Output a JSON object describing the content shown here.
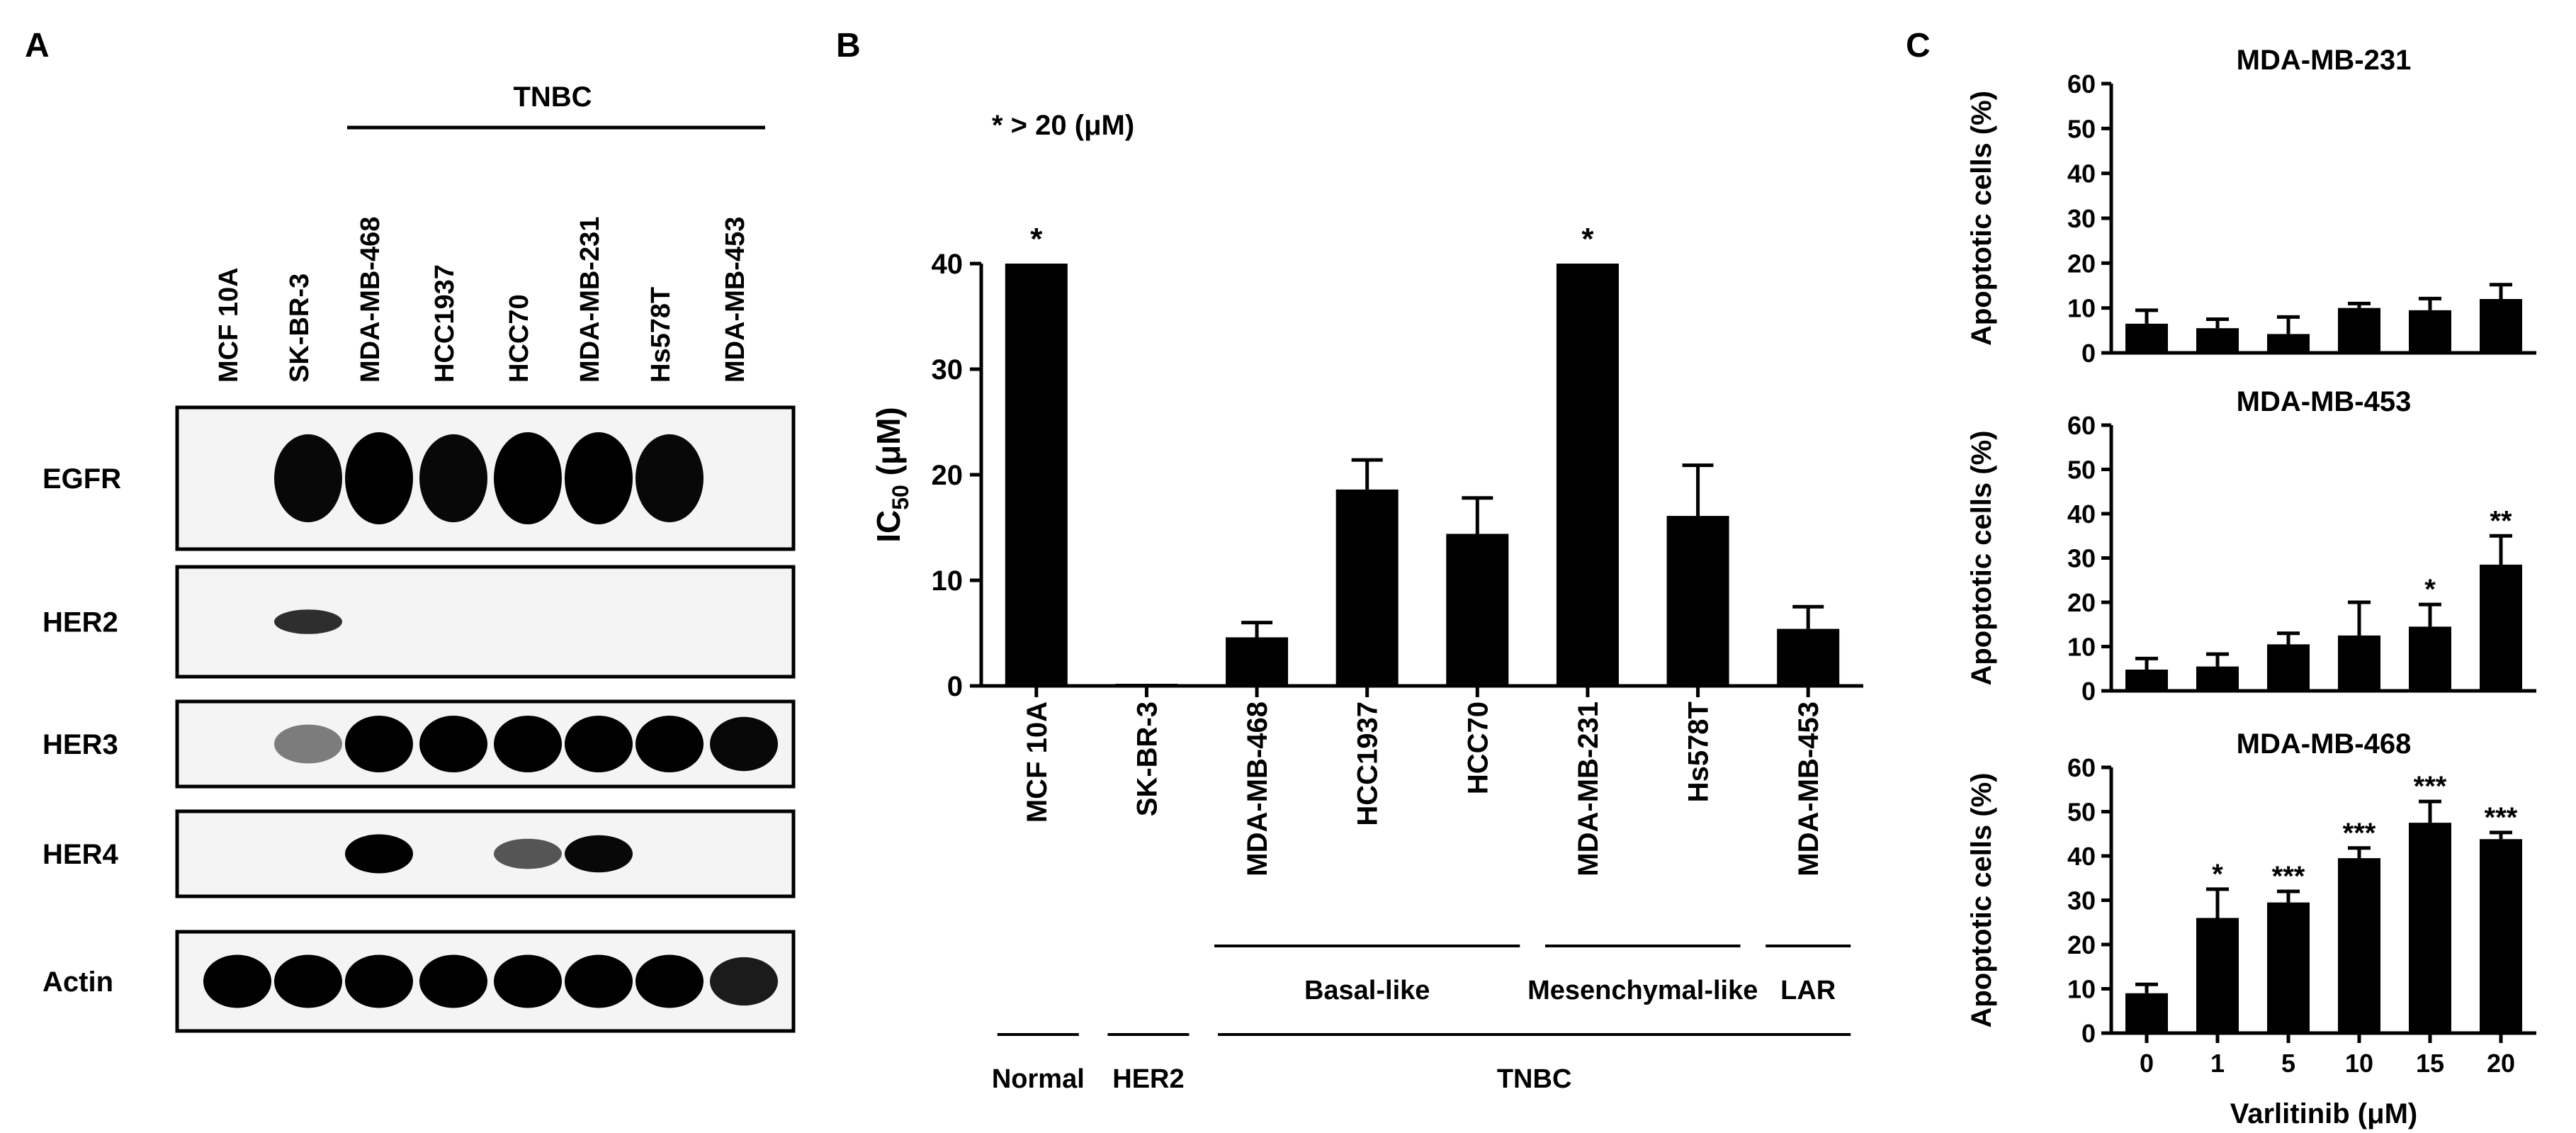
{
  "panel_labels": [
    "A",
    "B",
    "C"
  ],
  "panelA": {
    "group_label": "TNBC",
    "lanes": [
      "MCF 10A",
      "SK-BR-3",
      "MDA-MB-468",
      "HCC1937",
      "HCC70",
      "MDA-MB-231",
      "Hs578T",
      "MDA-MB-453"
    ],
    "blots": [
      {
        "label": "EGFR",
        "bands": [
          0,
          0.9,
          1,
          0.9,
          1,
          1,
          0.9,
          0
        ]
      },
      {
        "label": "HER2",
        "bands": [
          0,
          0.7,
          0,
          0,
          0,
          0,
          0,
          0
        ]
      },
      {
        "label": "HER3",
        "bands": [
          0,
          0.3,
          1,
          1,
          1,
          1,
          1,
          0.9
        ]
      },
      {
        "label": "HER4",
        "bands": [
          0,
          0,
          1,
          0,
          0.5,
          0.9,
          0,
          0
        ]
      },
      {
        "label": "Actin",
        "bands": [
          1,
          1,
          1,
          1,
          1,
          1,
          1,
          0.8
        ]
      }
    ]
  },
  "chart_data": [
    {
      "panel": "B",
      "type": "bar",
      "annotation": "* > 20 (μM)",
      "ylabel_main": "IC",
      "ylabel_sub": "50",
      "ylabel_unit": " (μM)",
      "ylim": [
        0,
        40
      ],
      "yticks": [
        "0",
        "10",
        "20",
        "30",
        "40"
      ],
      "categories": [
        "MCF 10A",
        "SK-BR-3",
        "MDA-MB-468",
        "HCC1937",
        "HCC70",
        "MDA-MB-231",
        "Hs578T",
        "MDA-MB-453"
      ],
      "values": [
        40,
        0.2,
        4.6,
        18.6,
        14.4,
        40,
        16.1,
        5.4
      ],
      "errors": [
        0,
        0,
        1.4,
        2.8,
        3.4,
        0,
        4.8,
        2.1
      ],
      "marks": [
        "*",
        "",
        "",
        "",
        "",
        "*",
        "",
        ""
      ],
      "subgroups": [
        "Basal-like",
        "Mesenchymal-like",
        "LAR"
      ],
      "groups": [
        "Normal",
        "HER2",
        "TNBC"
      ]
    },
    {
      "panel": "C",
      "type": "bar",
      "title": "MDA-MB-231",
      "ylabel": "Apoptotic cells (%)",
      "ylim": [
        0,
        60
      ],
      "yticks": [
        "0",
        "10",
        "20",
        "30",
        "40",
        "50",
        "60"
      ],
      "categories": [
        "0",
        "1",
        "5",
        "10",
        "15",
        "20"
      ],
      "values": [
        6.5,
        5.5,
        4.2,
        10.0,
        9.5,
        12.0
      ],
      "errors": [
        3.0,
        2.0,
        3.8,
        1.0,
        2.6,
        3.2
      ],
      "marks": [
        "",
        "",
        "",
        "",
        "",
        ""
      ]
    },
    {
      "panel": "C",
      "type": "bar",
      "title": "MDA-MB-453",
      "ylabel": "Apoptotic cells (%)",
      "ylim": [
        0,
        60
      ],
      "yticks": [
        "0",
        "10",
        "20",
        "30",
        "40",
        "50",
        "60"
      ],
      "categories": [
        "0",
        "1",
        "5",
        "10",
        "15",
        "20"
      ],
      "values": [
        4.8,
        5.5,
        10.5,
        12.5,
        14.5,
        28.5
      ],
      "errors": [
        2.5,
        2.8,
        2.5,
        7.5,
        5.0,
        6.5
      ],
      "marks": [
        "",
        "",
        "",
        "",
        "*",
        "**"
      ]
    },
    {
      "panel": "C",
      "type": "bar",
      "title": "MDA-MB-468",
      "ylabel": "Apoptotic cells (%)",
      "xlabel": "Varlitinib (μM)",
      "ylim": [
        0,
        60
      ],
      "yticks": [
        "0",
        "10",
        "20",
        "30",
        "40",
        "50",
        "60"
      ],
      "categories": [
        "0",
        "1",
        "5",
        "10",
        "15",
        "20"
      ],
      "values": [
        9.0,
        26.0,
        29.5,
        39.5,
        47.5,
        43.8
      ],
      "errors": [
        2.0,
        6.5,
        2.5,
        2.3,
        4.8,
        1.5
      ],
      "marks": [
        "",
        "*",
        "***",
        "***",
        "***",
        "***"
      ]
    }
  ]
}
